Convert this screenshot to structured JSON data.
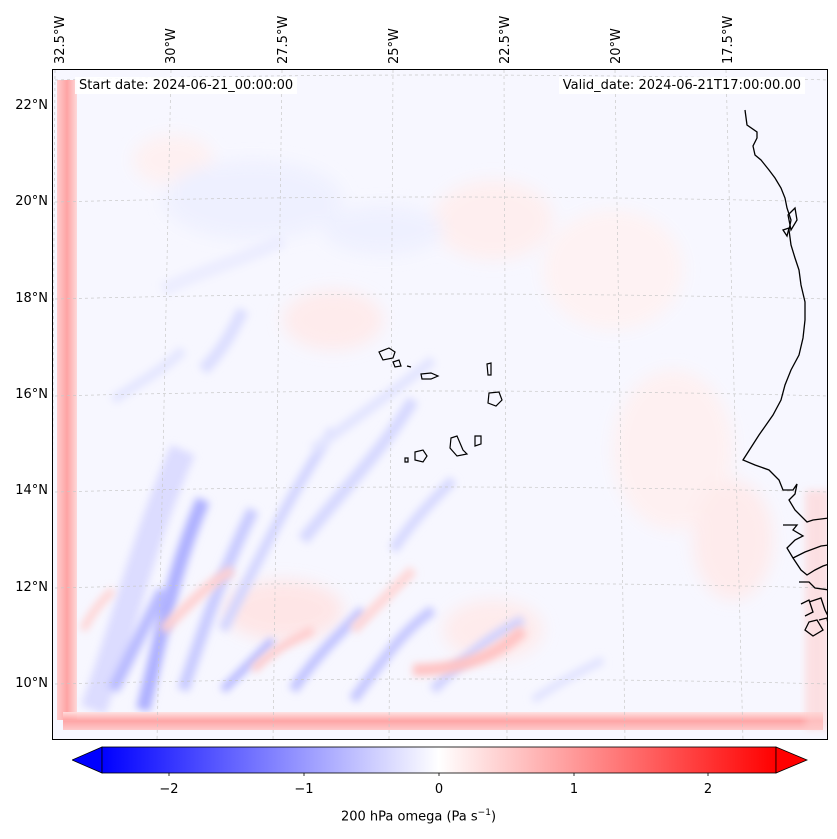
{
  "map": {
    "start_date": "Start date: 2024-06-21_00:00:00",
    "valid_date": "Valid_date: 2024-06-21T17:00:00.00",
    "lon_labels": [
      "32.5°W",
      "30°W",
      "27.5°W",
      "25°W",
      "22.5°W",
      "20°W",
      "17.5°W"
    ],
    "lat_labels": [
      "22°N",
      "20°N",
      "18°N",
      "16°N",
      "14°N",
      "12°N",
      "10°N"
    ],
    "field": "200 hPa omega",
    "colormap": "bwr",
    "colors": {
      "negative": "#0000ff",
      "zero": "#ffffff",
      "positive": "#ff0000",
      "coast": "#000000"
    }
  },
  "colorbar": {
    "label_main": "200 hPa omega (Pa s",
    "label_exp": "−1",
    "label_close": ")",
    "ticks": [
      "−2",
      "−1",
      "0",
      "1",
      "2"
    ],
    "range": [
      -2.5,
      2.5
    ],
    "extend": "both"
  }
}
